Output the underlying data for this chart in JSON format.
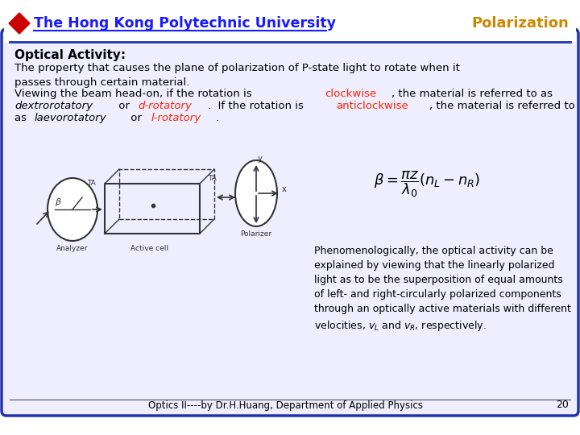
{
  "bg_color": "#ffffff",
  "border_color": "#2233aa",
  "title_text": "The Hong Kong Polytechnic University",
  "title_color": "#1a1aff",
  "polarization_text": "Polarization",
  "polarization_color": "#cc8800",
  "section_title": "Optical Activity:",
  "para1": "The property that causes the plane of polarization of P-state light to rotate when it\npasses through certain material.",
  "footer_text": "Optics II----by Dr.H.Huang, Department of Applied Physics",
  "page_number": "20",
  "footer_color": "#000000",
  "main_text_color": "#000000"
}
